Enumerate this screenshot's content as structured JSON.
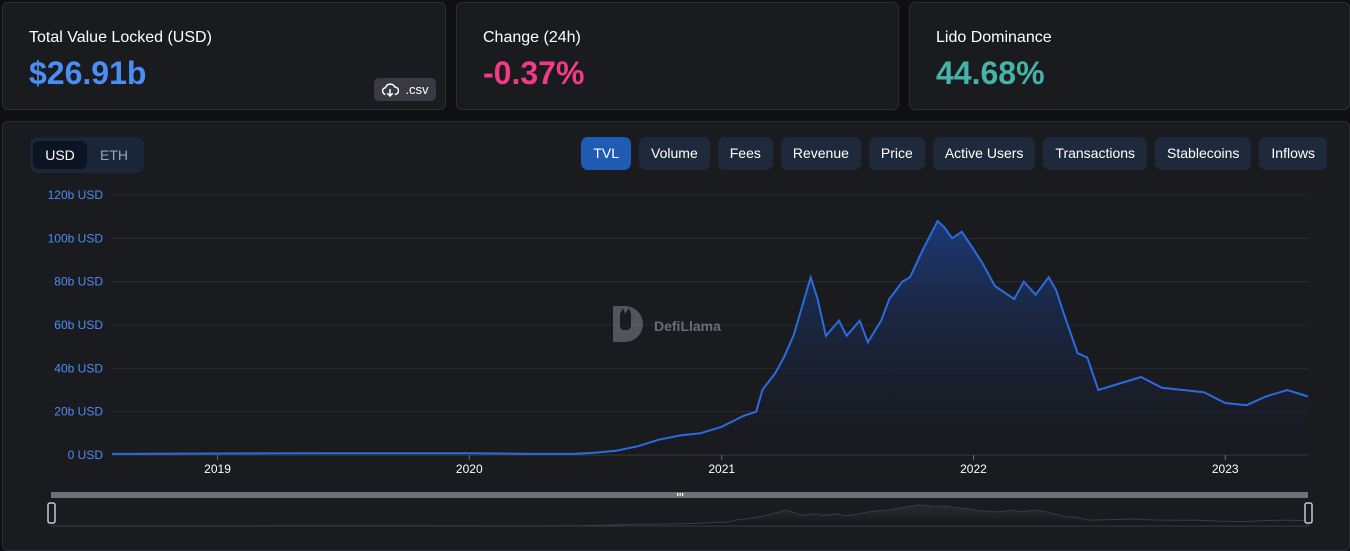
{
  "stats": {
    "tvl": {
      "label": "Total Value Locked (USD)",
      "value": "$26.91b",
      "color": "#4a8ef5",
      "csv_label": ".csv",
      "csv_icon": "cloud-download-icon"
    },
    "change": {
      "label": "Change (24h)",
      "value": "-0.37%",
      "color": "#f23b84"
    },
    "dominance": {
      "label": "Lido Dominance",
      "value": "44.68%",
      "color": "#45b3a8"
    }
  },
  "denomination": {
    "options": [
      "USD",
      "ETH"
    ],
    "selected": "USD"
  },
  "tabs": [
    "TVL",
    "Volume",
    "Fees",
    "Revenue",
    "Price",
    "Active Users",
    "Transactions",
    "Stablecoins",
    "Inflows"
  ],
  "active_tab": "TVL",
  "watermark": "DefiLlama",
  "colors": {
    "line": "#2a6be0",
    "fill_top": "#1d3f85",
    "grid": "#2a2b30",
    "tick_y": "#4a8ef5",
    "tick_x": "#ffffff"
  },
  "chart_data": {
    "type": "area",
    "title": "",
    "xlabel": "",
    "ylabel": "",
    "y_unit": "USD",
    "ylim": [
      0,
      120
    ],
    "yticks": [
      "0 USD",
      "20b USD",
      "40b USD",
      "60b USD",
      "80b USD",
      "100b USD",
      "120b USD"
    ],
    "xticks": [
      "2019",
      "2020",
      "2021",
      "2022",
      "2023"
    ],
    "grid": true,
    "series": [
      {
        "x": [
          "2018-08",
          "2018-10",
          "2019-01",
          "2019-06",
          "2020-01",
          "2020-04",
          "2020-06",
          "2020-07",
          "2020-08",
          "2020-09",
          "2020-10",
          "2020-11",
          "2020-12",
          "2021-01",
          "2021-02",
          "2021-02-20",
          "2021-03",
          "2021-03-20",
          "2021-04",
          "2021-04-15",
          "2021-05-10",
          "2021-05-20",
          "2021-06",
          "2021-06-20",
          "2021-07",
          "2021-07-20",
          "2021-08",
          "2021-08-20",
          "2021-09",
          "2021-09-20",
          "2021-10",
          "2021-10-20",
          "2021-11-10",
          "2021-11-20",
          "2021-12",
          "2021-12-15",
          "2022-01",
          "2022-01-15",
          "2022-02",
          "2022-03",
          "2022-03-15",
          "2022-04",
          "2022-04-20",
          "2022-05",
          "2022-05-10",
          "2022-06",
          "2022-06-15",
          "2022-07",
          "2022-08",
          "2022-09",
          "2022-10",
          "2022-11",
          "2022-12",
          "2023-01",
          "2023-02",
          "2023-03",
          "2023-04",
          "2023-05"
        ],
        "y": [
          0.5,
          0.6,
          0.7,
          0.8,
          0.8,
          0.5,
          0.5,
          1,
          2,
          4,
          7,
          9,
          10,
          13,
          18,
          20,
          30,
          38,
          45,
          55,
          82,
          72,
          55,
          62,
          55,
          62,
          52,
          62,
          72,
          80,
          82,
          95,
          108,
          105,
          100,
          103,
          95,
          88,
          78,
          72,
          80,
          74,
          82,
          76,
          67,
          47,
          45,
          30,
          33,
          36,
          31,
          30,
          29,
          24,
          23,
          27,
          30,
          27
        ]
      }
    ]
  }
}
